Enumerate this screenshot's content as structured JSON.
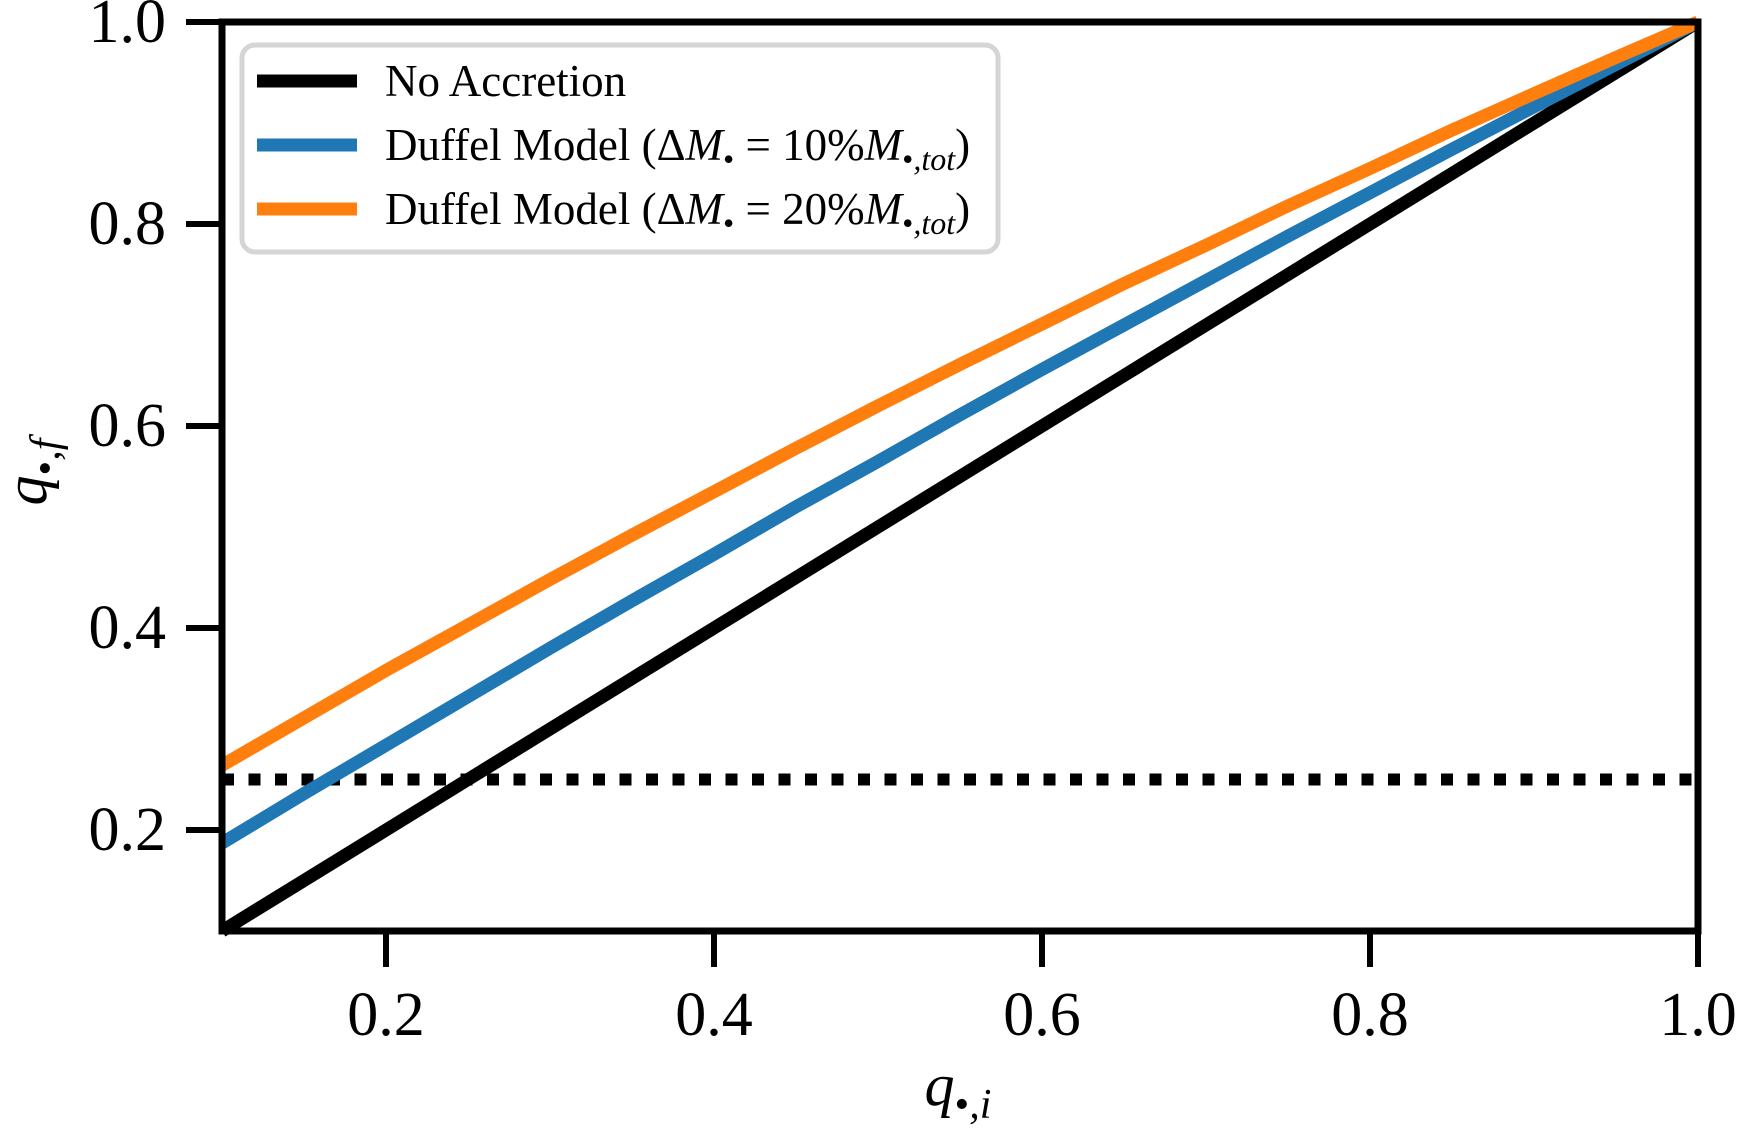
{
  "figure": {
    "background": "#ffffff",
    "frame_color": "#000000"
  },
  "chart_data": {
    "type": "line",
    "title": "",
    "xlabel": "q_{•,i}",
    "ylabel": "q_{•,f}",
    "xlabel_segments": [
      {
        "t": "q",
        "italic": true
      },
      {
        "t": "•",
        "sub": true
      },
      {
        "t": ",i",
        "sub": true,
        "italic": true
      }
    ],
    "ylabel_segments": [
      {
        "t": "q",
        "italic": true
      },
      {
        "t": "•",
        "sub": true
      },
      {
        "t": ",f",
        "sub": true,
        "italic": true
      }
    ],
    "xlim": [
      0.1,
      1.0
    ],
    "ylim": [
      0.1,
      1.0
    ],
    "grid": false,
    "xticks": [
      {
        "v": 0.2,
        "label": "0.2"
      },
      {
        "v": 0.4,
        "label": "0.4"
      },
      {
        "v": 0.6,
        "label": "0.6"
      },
      {
        "v": 0.8,
        "label": "0.8"
      },
      {
        "v": 1.0,
        "label": "1.0"
      }
    ],
    "yticks": [
      {
        "v": 0.2,
        "label": "0.2"
      },
      {
        "v": 0.4,
        "label": "0.4"
      },
      {
        "v": 0.6,
        "label": "0.6"
      },
      {
        "v": 0.8,
        "label": "0.8"
      },
      {
        "v": 1.0,
        "label": "1.0"
      }
    ],
    "x": [
      0.1,
      0.15,
      0.2,
      0.25,
      0.3,
      0.35,
      0.4,
      0.45,
      0.5,
      0.55,
      0.6,
      0.65,
      0.7,
      0.75,
      0.8,
      0.85,
      0.9,
      0.95,
      1.0
    ],
    "series": [
      {
        "name": "No Accretion",
        "color": "#000000",
        "linestyle": "solid",
        "label_segments": [
          {
            "t": "No Accretion"
          }
        ],
        "values": [
          0.1,
          0.15,
          0.2,
          0.25,
          0.3,
          0.35,
          0.4,
          0.45,
          0.5,
          0.55,
          0.6,
          0.65,
          0.7,
          0.75,
          0.8,
          0.85,
          0.9,
          0.95,
          1.0
        ]
      },
      {
        "name": "Duffel Model (ΔM• = 10%M•,tot)",
        "color": "#1f77b4",
        "linestyle": "solid",
        "label_segments": [
          {
            "t": "Duffel Model (Δ"
          },
          {
            "t": "M",
            "italic": true
          },
          {
            "t": "•",
            "sub": true
          },
          {
            "t": " = 10%"
          },
          {
            "t": "M",
            "italic": true
          },
          {
            "t": "•",
            "sub": true
          },
          {
            "t": ",tot",
            "sub": true,
            "italic": true
          },
          {
            "t": ")"
          }
        ],
        "values": [
          0.187,
          0.236,
          0.284,
          0.332,
          0.38,
          0.427,
          0.473,
          0.52,
          0.565,
          0.611,
          0.656,
          0.7,
          0.744,
          0.788,
          0.831,
          0.874,
          0.916,
          0.958,
          1.0
        ]
      },
      {
        "name": "Duffel Model (ΔM• = 20%M•,tot)",
        "color": "#ff7f0e",
        "linestyle": "solid",
        "label_segments": [
          {
            "t": "Duffel Model (Δ"
          },
          {
            "t": "M",
            "italic": true
          },
          {
            "t": "•",
            "sub": true
          },
          {
            "t": " = 20%"
          },
          {
            "t": "M",
            "italic": true
          },
          {
            "t": "•",
            "sub": true
          },
          {
            "t": ",tot",
            "sub": true,
            "italic": true
          },
          {
            "t": ")"
          }
        ],
        "values": [
          0.264,
          0.311,
          0.358,
          0.403,
          0.448,
          0.492,
          0.535,
          0.578,
          0.62,
          0.661,
          0.701,
          0.741,
          0.779,
          0.818,
          0.855,
          0.893,
          0.929,
          0.965,
          1.0
        ]
      }
    ],
    "annotations": [
      {
        "type": "hline",
        "y": 0.25,
        "linestyle": "dotted",
        "color": "#000000"
      }
    ],
    "legend": {
      "position": "upper-left",
      "border_color": "#d5d5d5",
      "fill_color": "#ffffff"
    }
  }
}
